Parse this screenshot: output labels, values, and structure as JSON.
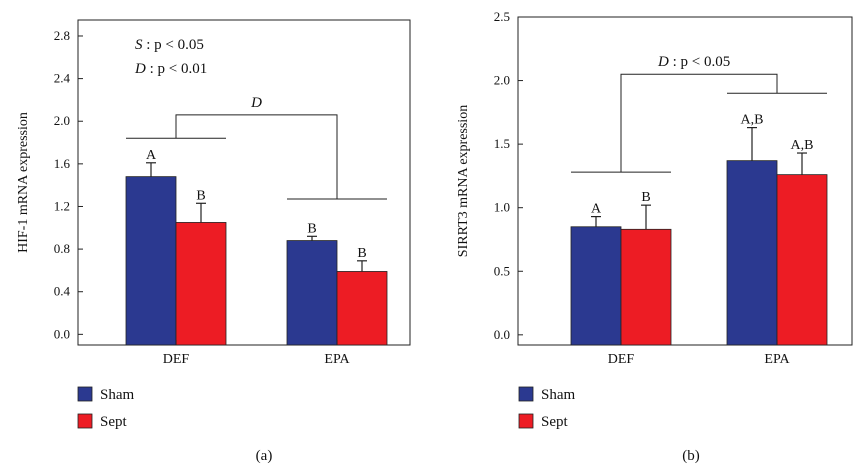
{
  "colors": {
    "sham": "#2b3990",
    "sept": "#ed1c24",
    "axis": "#222222"
  },
  "chart_data": [
    {
      "type": "bar",
      "panel_label": "(a)",
      "ylabel": "HIF-1 mRNA expression",
      "ylim": [
        -0.1,
        2.95
      ],
      "yticks": [
        "0.0",
        "0.4",
        "0.8",
        "1.2",
        "1.6",
        "2.0",
        "2.4",
        "2.8"
      ],
      "categories": [
        "DEF",
        "EPA"
      ],
      "series": [
        {
          "name": "Sham",
          "values": [
            1.48,
            0.88
          ],
          "errors": [
            0.13,
            0.04
          ]
        },
        {
          "name": "Sept",
          "values": [
            1.05,
            0.59
          ],
          "errors": [
            0.18,
            0.1
          ]
        }
      ],
      "bar_labels": [
        [
          "A",
          "B"
        ],
        [
          "B",
          "B"
        ]
      ],
      "stats": [
        {
          "factor": "S",
          "text": ": p < 0.05"
        },
        {
          "factor": "D",
          "text": ": p < 0.01"
        }
      ],
      "bracket": {
        "label": "D",
        "levels": [
          1.84,
          1.27
        ],
        "top": 2.06
      },
      "legend": [
        "Sham",
        "Sept"
      ]
    },
    {
      "type": "bar",
      "panel_label": "(b)",
      "ylabel": "SIRRT3 mRNA expression",
      "ylim": [
        -0.08,
        2.5
      ],
      "yticks": [
        "0.0",
        "0.5",
        "1.0",
        "1.5",
        "2.0",
        "2.5"
      ],
      "categories": [
        "DEF",
        "EPA"
      ],
      "series": [
        {
          "name": "Sham",
          "values": [
            0.85,
            1.37
          ],
          "errors": [
            0.08,
            0.26
          ]
        },
        {
          "name": "Sept",
          "values": [
            0.83,
            1.26
          ],
          "errors": [
            0.19,
            0.17
          ]
        }
      ],
      "bar_labels": [
        [
          "A",
          "B"
        ],
        [
          "A,B",
          "A,B"
        ]
      ],
      "stats": [
        {
          "factor": "D",
          "text": ": p < 0.05"
        }
      ],
      "bracket": {
        "levels": [
          1.28,
          1.9
        ],
        "top": 2.05
      },
      "legend": [
        "Sham",
        "Sept"
      ]
    }
  ]
}
